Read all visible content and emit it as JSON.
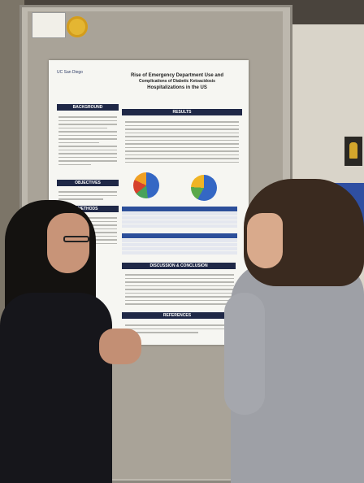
{
  "poster": {
    "title_line1": "Rise of Emergency Department Use and",
    "title_line2": "Complications of Diabetic Ketoacidosis",
    "title_line3": "Hospitalizations in the US",
    "institution": "UC San Diego",
    "sections": {
      "background": "BACKGROUND",
      "objectives": "OBJECTIVES",
      "methods": "METHODS",
      "results": "RESULTS",
      "discussion": "DISCUSSION & CONCLUSION",
      "references": "REFERENCES"
    }
  },
  "colors": {
    "poster_header": "#1f2847",
    "table_header": "#2c4f9a",
    "badge": "#e4b632"
  }
}
